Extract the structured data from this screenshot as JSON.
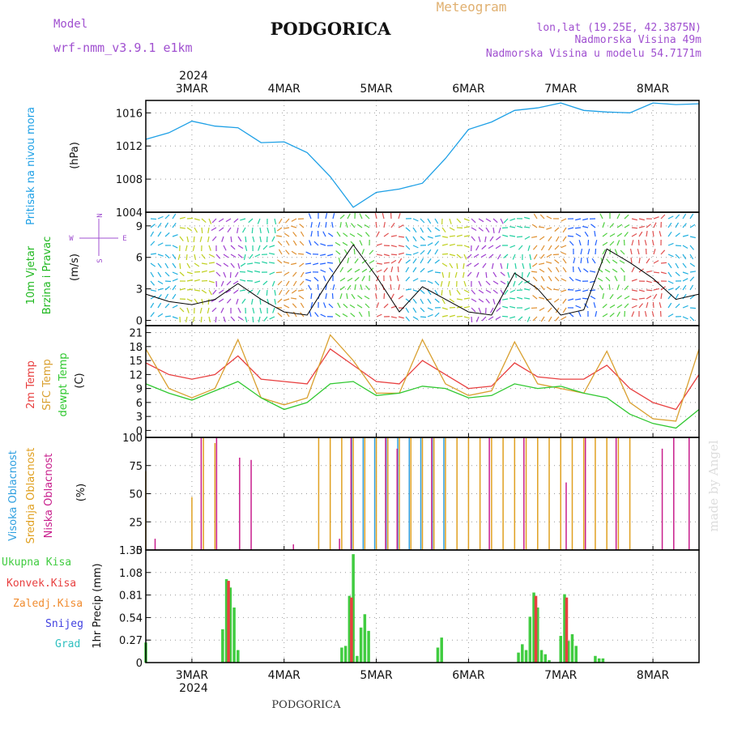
{
  "header": {
    "model_label": "Model",
    "model_name": "wrf-nmm_v3.9.1 e1km",
    "title": "PODGORICA",
    "meteogram_label": "Meteogram",
    "lonlat": "lon,lat (19.25E, 42.3875N)",
    "altitude": "Nadmorska Visina 49m",
    "model_altitude": "Nadmorska Visina u modelu 54.7171m",
    "footer_title": "PODGORICA",
    "watermark": "made by Angel",
    "year": "2024"
  },
  "colors": {
    "pressure": "#1ea0e6",
    "temp2m": "#e84040",
    "sfc_temp": "#d9a030",
    "dewpoint": "#30c830",
    "high_cloud": "#30a0e0",
    "mid_cloud": "#e0a020",
    "low_cloud": "#c81e8c",
    "total_precip": "#40cc40",
    "conv_precip": "#e84040",
    "frozen_precip": "#f08c30",
    "snow": "#4040e0",
    "graupel": "#30c0c0",
    "model_label": "#a050d0",
    "meteogram_label": "#e0b070"
  },
  "time_axis": {
    "labels": [
      "3MAR",
      "4MAR",
      "5MAR",
      "6MAR",
      "7MAR",
      "8MAR"
    ],
    "start": "2024-03-02T12:00Z",
    "end": "2024-03-08T12:00Z"
  },
  "chart_data": [
    {
      "type": "line",
      "title": "Pritisak na nivou mora",
      "ylabel": "(hPa)",
      "ylim": [
        1004,
        1017.5
      ],
      "yticks": [
        "1004",
        "1008",
        "1012",
        "1016"
      ],
      "grid": true,
      "series": [
        {
          "name": "Pritisak na nivou mora",
          "x": [
            "2024-03-02T12:00Z",
            "2024-03-02T18:00Z",
            "2024-03-03T00:00Z",
            "2024-03-03T06:00Z",
            "2024-03-03T12:00Z",
            "2024-03-03T18:00Z",
            "2024-03-04T00:00Z",
            "2024-03-04T06:00Z",
            "2024-03-04T12:00Z",
            "2024-03-04T18:00Z",
            "2024-03-05T00:00Z",
            "2024-03-05T06:00Z",
            "2024-03-05T12:00Z",
            "2024-03-05T18:00Z",
            "2024-03-06T00:00Z",
            "2024-03-06T06:00Z",
            "2024-03-06T12:00Z",
            "2024-03-06T18:00Z",
            "2024-03-07T00:00Z",
            "2024-03-07T06:00Z",
            "2024-03-07T12:00Z",
            "2024-03-07T18:00Z",
            "2024-03-08T00:00Z",
            "2024-03-08T06:00Z",
            "2024-03-08T12:00Z"
          ],
          "values": [
            1012.8,
            1013.6,
            1015.0,
            1014.4,
            1014.2,
            1012.4,
            1012.5,
            1011.2,
            1008.3,
            1004.6,
            1006.4,
            1006.8,
            1007.5,
            1010.5,
            1014.0,
            1014.9,
            1016.3,
            1016.6,
            1017.2,
            1016.3,
            1016.1,
            1016.0,
            1017.2,
            1017.0,
            1017.1
          ]
        }
      ]
    },
    {
      "type": "line",
      "title": "10m Vjetar Brzina i Pravac",
      "ylabel": "(m/s)",
      "ylim": [
        -0.5,
        10.3
      ],
      "yticks": [
        "0",
        "3",
        "6",
        "9"
      ],
      "compass": [
        "N",
        "S",
        "W",
        "E"
      ],
      "grid": true,
      "series": [
        {
          "name": "10m Vjetar Brzina",
          "x": [
            "2024-03-02T12:00Z",
            "2024-03-02T18:00Z",
            "2024-03-03T00:00Z",
            "2024-03-03T06:00Z",
            "2024-03-03T12:00Z",
            "2024-03-03T18:00Z",
            "2024-03-04T00:00Z",
            "2024-03-04T06:00Z",
            "2024-03-04T12:00Z",
            "2024-03-04T18:00Z",
            "2024-03-05T00:00Z",
            "2024-03-05T06:00Z",
            "2024-03-05T12:00Z",
            "2024-03-05T18:00Z",
            "2024-03-06T00:00Z",
            "2024-03-06T06:00Z",
            "2024-03-06T12:00Z",
            "2024-03-06T18:00Z",
            "2024-03-07T00:00Z",
            "2024-03-07T06:00Z",
            "2024-03-07T12:00Z",
            "2024-03-07T18:00Z",
            "2024-03-08T00:00Z",
            "2024-03-08T06:00Z",
            "2024-03-08T12:00Z"
          ],
          "values": [
            2.5,
            1.8,
            1.5,
            2.0,
            3.5,
            2.0,
            0.8,
            0.5,
            4.0,
            7.2,
            4.2,
            0.8,
            3.2,
            2.0,
            0.8,
            0.5,
            4.5,
            3.0,
            0.5,
            1.0,
            6.8,
            5.5,
            4.0,
            2.0,
            2.5
          ]
        }
      ]
    },
    {
      "type": "line",
      "ylabel": "(C)",
      "ylim": [
        -1.5,
        22.5
      ],
      "yticks": [
        "0",
        "3",
        "6",
        "9",
        "12",
        "15",
        "18",
        "21"
      ],
      "grid": true,
      "series": [
        {
          "name": "2m Temp",
          "x": [
            "2024-03-02T12:00Z",
            "2024-03-02T18:00Z",
            "2024-03-03T00:00Z",
            "2024-03-03T06:00Z",
            "2024-03-03T12:00Z",
            "2024-03-03T18:00Z",
            "2024-03-04T00:00Z",
            "2024-03-04T06:00Z",
            "2024-03-04T12:00Z",
            "2024-03-04T18:00Z",
            "2024-03-05T00:00Z",
            "2024-03-05T06:00Z",
            "2024-03-05T12:00Z",
            "2024-03-05T18:00Z",
            "2024-03-06T00:00Z",
            "2024-03-06T06:00Z",
            "2024-03-06T12:00Z",
            "2024-03-06T18:00Z",
            "2024-03-07T00:00Z",
            "2024-03-07T06:00Z",
            "2024-03-07T12:00Z",
            "2024-03-07T18:00Z",
            "2024-03-08T00:00Z",
            "2024-03-08T06:00Z",
            "2024-03-08T12:00Z"
          ],
          "values": [
            14.5,
            12.0,
            11.0,
            12.0,
            16.0,
            11.0,
            10.5,
            10.0,
            17.5,
            14.0,
            10.5,
            10.0,
            15.0,
            12.0,
            9.0,
            9.5,
            14.5,
            11.5,
            11.0,
            11.0,
            14.0,
            9.0,
            6.0,
            4.5,
            12.0
          ]
        },
        {
          "name": "SFC Temp",
          "x": [
            "2024-03-02T12:00Z",
            "2024-03-02T18:00Z",
            "2024-03-03T00:00Z",
            "2024-03-03T06:00Z",
            "2024-03-03T12:00Z",
            "2024-03-03T18:00Z",
            "2024-03-04T00:00Z",
            "2024-03-04T06:00Z",
            "2024-03-04T12:00Z",
            "2024-03-04T18:00Z",
            "2024-03-05T00:00Z",
            "2024-03-05T06:00Z",
            "2024-03-05T12:00Z",
            "2024-03-05T18:00Z",
            "2024-03-06T00:00Z",
            "2024-03-06T06:00Z",
            "2024-03-06T12:00Z",
            "2024-03-06T18:00Z",
            "2024-03-07T00:00Z",
            "2024-03-07T06:00Z",
            "2024-03-07T12:00Z",
            "2024-03-07T18:00Z",
            "2024-03-08T00:00Z",
            "2024-03-08T06:00Z",
            "2024-03-08T12:00Z"
          ],
          "values": [
            17.5,
            9.0,
            7.0,
            9.0,
            19.5,
            7.0,
            5.5,
            7.0,
            20.5,
            15.0,
            8.0,
            8.0,
            19.5,
            10.0,
            7.5,
            8.5,
            19.0,
            10.0,
            9.0,
            8.0,
            17.0,
            6.0,
            2.5,
            2.0,
            17.5
          ]
        },
        {
          "name": "dewpt Temp",
          "x": [
            "2024-03-02T12:00Z",
            "2024-03-02T18:00Z",
            "2024-03-03T00:00Z",
            "2024-03-03T06:00Z",
            "2024-03-03T12:00Z",
            "2024-03-03T18:00Z",
            "2024-03-04T00:00Z",
            "2024-03-04T06:00Z",
            "2024-03-04T12:00Z",
            "2024-03-04T18:00Z",
            "2024-03-05T00:00Z",
            "2024-03-05T06:00Z",
            "2024-03-05T12:00Z",
            "2024-03-05T18:00Z",
            "2024-03-06T00:00Z",
            "2024-03-06T06:00Z",
            "2024-03-06T12:00Z",
            "2024-03-06T18:00Z",
            "2024-03-07T00:00Z",
            "2024-03-07T06:00Z",
            "2024-03-07T12:00Z",
            "2024-03-07T18:00Z",
            "2024-03-08T00:00Z",
            "2024-03-08T06:00Z",
            "2024-03-08T12:00Z"
          ],
          "values": [
            10.0,
            8.0,
            6.5,
            8.5,
            10.5,
            7.0,
            4.5,
            6.0,
            10.0,
            10.5,
            7.5,
            8.0,
            9.5,
            9.0,
            7.0,
            7.5,
            10.0,
            9.0,
            9.5,
            8.0,
            7.0,
            3.5,
            1.5,
            0.5,
            4.5
          ]
        }
      ]
    },
    {
      "type": "bar",
      "ylabel": "(%)",
      "ylim": [
        0,
        100
      ],
      "yticks": [
        "0",
        "25",
        "50",
        "75",
        "100"
      ],
      "grid": true,
      "series": [
        {
          "name": "Visoka Oblacnost",
          "x": [
            "2024-03-04T18:00Z",
            "2024-03-04T21:00Z",
            "2024-03-05T00:00Z",
            "2024-03-05T03:00Z",
            "2024-03-05T06:00Z",
            "2024-03-05T09:00Z",
            "2024-03-05T12:00Z",
            "2024-03-05T15:00Z",
            "2024-03-05T18:00Z"
          ],
          "values": [
            100,
            100,
            100,
            100,
            100,
            100,
            100,
            100,
            100
          ]
        },
        {
          "name": "Srednja Oblacnost",
          "x": [
            "2024-03-02T12:00Z",
            "2024-03-03T00:00Z",
            "2024-03-03T03:00Z",
            "2024-03-03T06:00Z",
            "2024-03-04T09:00Z",
            "2024-03-04T12:00Z",
            "2024-03-04T15:00Z",
            "2024-03-04T18:00Z",
            "2024-03-04T21:00Z",
            "2024-03-05T00:00Z",
            "2024-03-05T03:00Z",
            "2024-03-05T06:00Z",
            "2024-03-05T09:00Z",
            "2024-03-05T12:00Z",
            "2024-03-05T15:00Z",
            "2024-03-05T18:00Z",
            "2024-03-05T21:00Z",
            "2024-03-06T00:00Z",
            "2024-03-06T03:00Z",
            "2024-03-06T06:00Z",
            "2024-03-06T09:00Z",
            "2024-03-06T12:00Z",
            "2024-03-06T15:00Z",
            "2024-03-06T18:00Z",
            "2024-03-06T21:00Z",
            "2024-03-07T00:00Z",
            "2024-03-07T03:00Z",
            "2024-03-07T06:00Z",
            "2024-03-07T09:00Z",
            "2024-03-07T12:00Z",
            "2024-03-07T15:00Z",
            "2024-03-07T18:00Z"
          ],
          "values": [
            70,
            47,
            100,
            95,
            100,
            100,
            100,
            100,
            100,
            100,
            100,
            100,
            100,
            100,
            100,
            100,
            100,
            100,
            100,
            100,
            100,
            100,
            100,
            100,
            100,
            100,
            100,
            100,
            100,
            100,
            100,
            100
          ]
        },
        {
          "name": "Niska Oblacnost",
          "x": [
            "2024-03-02T14:00Z",
            "2024-03-03T02:00Z",
            "2024-03-03T06:00Z",
            "2024-03-03T12:00Z",
            "2024-03-03T15:00Z",
            "2024-03-04T02:00Z",
            "2024-03-04T14:00Z",
            "2024-03-04T17:00Z",
            "2024-03-05T02:00Z",
            "2024-03-05T05:00Z",
            "2024-03-05T14:00Z",
            "2024-03-06T05:00Z",
            "2024-03-06T14:00Z",
            "2024-03-07T01:00Z",
            "2024-03-07T06:00Z",
            "2024-03-07T14:00Z",
            "2024-03-08T02:00Z",
            "2024-03-08T05:00Z",
            "2024-03-08T09:00Z"
          ],
          "values": [
            10,
            100,
            100,
            82,
            80,
            5,
            10,
            100,
            100,
            90,
            100,
            100,
            100,
            60,
            100,
            100,
            90,
            100,
            100
          ]
        }
      ]
    },
    {
      "type": "bar",
      "ylabel": "1hr Precip (mm)",
      "ylim": [
        0,
        1.35
      ],
      "yticks": [
        "0",
        "0.27",
        "0.54",
        "0.81",
        "1.08",
        "1.35"
      ],
      "grid": true,
      "series": [
        {
          "name": "Ukupna Kisa",
          "x": [
            "2024-03-02T12:00Z",
            "2024-03-03T08:00Z",
            "2024-03-03T09:00Z",
            "2024-03-03T10:00Z",
            "2024-03-03T11:00Z",
            "2024-03-03T12:00Z",
            "2024-03-04T15:00Z",
            "2024-03-04T16:00Z",
            "2024-03-04T17:00Z",
            "2024-03-04T18:00Z",
            "2024-03-04T19:00Z",
            "2024-03-04T20:00Z",
            "2024-03-04T21:00Z",
            "2024-03-04T22:00Z",
            "2024-03-05T16:00Z",
            "2024-03-05T17:00Z",
            "2024-03-06T13:00Z",
            "2024-03-06T14:00Z",
            "2024-03-06T15:00Z",
            "2024-03-06T16:00Z",
            "2024-03-06T17:00Z",
            "2024-03-06T18:00Z",
            "2024-03-06T19:00Z",
            "2024-03-06T20:00Z",
            "2024-03-06T21:00Z",
            "2024-03-07T00:00Z",
            "2024-03-07T01:00Z",
            "2024-03-07T02:00Z",
            "2024-03-07T03:00Z",
            "2024-03-07T04:00Z",
            "2024-03-07T09:00Z",
            "2024-03-07T10:00Z",
            "2024-03-07T11:00Z"
          ],
          "values": [
            0.24,
            0.4,
            1.0,
            0.9,
            0.66,
            0.15,
            0.18,
            0.2,
            0.8,
            1.3,
            0.08,
            0.42,
            0.58,
            0.38,
            0.18,
            0.3,
            0.12,
            0.22,
            0.15,
            0.55,
            0.84,
            0.66,
            0.15,
            0.1,
            0.03,
            0.32,
            0.82,
            0.26,
            0.34,
            0.2,
            0.08,
            0.05,
            0.05
          ]
        },
        {
          "name": "Konvek.Kisa",
          "x": [
            "2024-03-03T09:00Z",
            "2024-03-04T17:00Z",
            "2024-03-06T17:00Z",
            "2024-03-07T01:00Z"
          ],
          "values": [
            0.98,
            0.78,
            0.8,
            0.78
          ]
        },
        {
          "name": "Zaledj.Kisa",
          "x": [],
          "values": []
        },
        {
          "name": "Snijeg",
          "x": [],
          "values": []
        },
        {
          "name": "Grad",
          "x": [],
          "values": []
        }
      ]
    }
  ]
}
